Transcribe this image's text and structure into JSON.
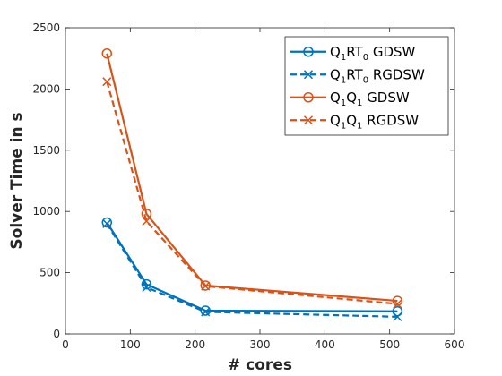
{
  "chart_data": {
    "type": "line",
    "xlabel": "# cores",
    "ylabel": "Solver Time in s",
    "xlim": [
      0,
      600
    ],
    "ylim": [
      0,
      2500
    ],
    "xticks": [
      0,
      100,
      200,
      300,
      400,
      500,
      600
    ],
    "yticks": [
      0,
      500,
      1000,
      1500,
      2000,
      2500
    ],
    "grid": false,
    "legend_position": "top-right",
    "x": [
      64,
      125,
      216,
      512
    ],
    "series": [
      {
        "key": "s1",
        "name_parts": [
          [
            "Q",
            ""
          ],
          [
            "1",
            "sub"
          ],
          [
            "RT",
            ""
          ],
          [
            "0",
            "sub"
          ],
          [
            " GDSW",
            ""
          ]
        ],
        "values": [
          910,
          405,
          190,
          185
        ],
        "color": "#0072BD",
        "dash": "solid",
        "marker": "circle"
      },
      {
        "key": "s2",
        "name_parts": [
          [
            "Q",
            ""
          ],
          [
            "1",
            "sub"
          ],
          [
            "RT",
            ""
          ],
          [
            "0",
            "sub"
          ],
          [
            "  RGDSW",
            ""
          ]
        ],
        "values": [
          900,
          380,
          180,
          140
        ],
        "color": "#0072BD",
        "dash": "dashed",
        "marker": "x"
      },
      {
        "key": "s3",
        "name_parts": [
          [
            "Q",
            ""
          ],
          [
            "1",
            "sub"
          ],
          [
            "Q",
            ""
          ],
          [
            "1",
            "sub"
          ],
          [
            " GDSW",
            ""
          ]
        ],
        "values": [
          2290,
          980,
          395,
          270
        ],
        "color": "#D95319",
        "dash": "solid",
        "marker": "circle"
      },
      {
        "key": "s4",
        "name_parts": [
          [
            "Q",
            ""
          ],
          [
            "1",
            "sub"
          ],
          [
            "Q",
            ""
          ],
          [
            "1",
            "sub"
          ],
          [
            " RGDSW",
            ""
          ]
        ],
        "values": [
          2060,
          920,
          390,
          245
        ],
        "color": "#D95319",
        "dash": "dashed",
        "marker": "x"
      }
    ]
  }
}
